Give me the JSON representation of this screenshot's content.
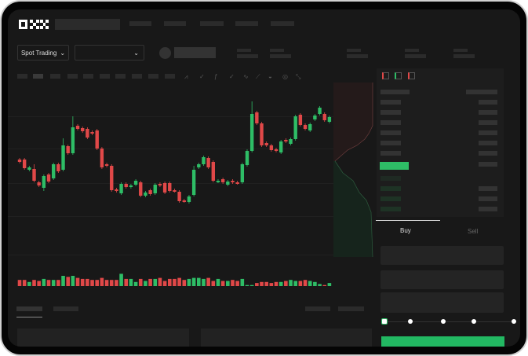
{
  "header": {
    "logo": "OKX"
  },
  "controls": {
    "market_type": "Spot Trading",
    "pair_select": ""
  },
  "trade": {
    "buy_label": "Buy",
    "sell_label": "Sell",
    "active_side": "Buy",
    "leverage_slider": 0
  },
  "colors": {
    "up": "#2ebd66",
    "down": "#e04848",
    "background": "#181818"
  },
  "toolbar": {
    "icons": [
      "line-icon",
      "wave-icon",
      "indicator-icon",
      "trend-icon",
      "ruler-icon",
      "camera-icon",
      "target-icon",
      "fullscreen-icon"
    ]
  },
  "orderbook": {
    "icons": [
      "both-sides-icon",
      "bids-icon",
      "asks-icon"
    ]
  },
  "chart_data": {
    "type": "candlestick",
    "candles": [
      [
        97,
        94
      ],
      [
        97,
        86
      ],
      [
        84,
        87
      ],
      [
        85,
        70,
        91
      ],
      [
        68,
        64
      ],
      [
        61,
        76,
        null,
        57
      ],
      [
        78,
        69
      ],
      [
        73,
        91
      ],
      [
        91,
        82
      ],
      [
        84,
        115,
        124
      ],
      [
        114,
        105
      ],
      [
        105,
        138,
        152
      ],
      [
        140,
        136
      ],
      [
        137,
        133
      ],
      [
        136,
        125
      ],
      [
        132,
        130
      ],
      [
        134,
        111
      ],
      [
        111,
        87
      ],
      [
        91,
        89
      ],
      [
        89,
        58
      ],
      [
        59,
        57
      ],
      [
        54,
        66
      ],
      [
        66,
        62
      ],
      [
        62,
        64
      ],
      [
        65,
        70
      ],
      [
        68,
        51
      ],
      [
        51,
        55
      ],
      [
        58,
        53
      ],
      [
        54,
        65
      ],
      [
        66,
        64
      ],
      [
        67,
        55
      ],
      [
        67,
        57
      ],
      [
        58,
        57
      ],
      [
        56,
        44
      ],
      [
        45,
        44
      ],
      [
        43,
        50
      ],
      [
        52,
        84,
        89
      ],
      [
        87,
        91
      ],
      [
        91,
        100
      ],
      [
        99,
        87
      ],
      [
        94,
        70
      ],
      [
        69,
        70
      ],
      [
        72,
        68
      ],
      [
        65,
        69
      ],
      [
        70,
        68
      ],
      [
        68,
        67
      ],
      [
        68,
        91
      ],
      [
        90,
        108
      ],
      [
        108,
        155,
        171
      ],
      [
        157,
        143
      ],
      [
        143,
        115
      ],
      [
        118,
        115
      ],
      [
        115,
        109
      ],
      [
        110,
        108
      ],
      [
        106,
        120
      ],
      [
        122,
        120
      ],
      [
        117,
        123
      ],
      [
        123,
        152
      ],
      [
        154,
        141
      ],
      [
        141,
        136
      ],
      [
        134,
        142
      ],
      [
        148,
        153
      ],
      [
        155,
        163
      ],
      [
        155,
        147
      ],
      [
        145,
        151
      ]
    ],
    "volume": [
      6,
      6,
      4,
      6,
      5,
      7,
      6,
      6,
      6,
      10,
      9,
      10,
      8,
      7,
      7,
      6,
      6,
      8,
      6,
      6,
      6,
      12,
      7,
      7,
      4,
      7,
      5,
      7,
      7,
      8,
      5,
      7,
      7,
      8,
      6,
      7,
      8,
      8,
      7,
      8,
      5,
      7,
      5,
      5,
      6,
      5,
      7,
      1,
      1,
      3,
      4,
      4,
      3,
      4,
      4,
      5,
      6,
      5,
      5,
      6,
      5,
      4,
      2,
      1,
      3
    ],
    "grid": true
  }
}
